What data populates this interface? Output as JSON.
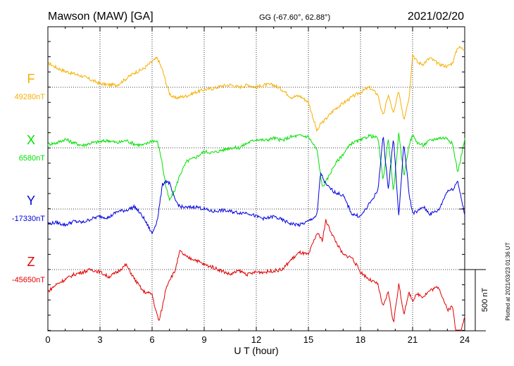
{
  "header": {
    "station": "Mawson (MAW)  [GA]",
    "coords": "GG (-67.60°,  62.88°)",
    "date": "2021/02/20"
  },
  "footer_note": "Plotted at 2021/03/23 01:36 UT",
  "chart_data": {
    "type": "line",
    "xlabel": "U T (hour)",
    "xlim": [
      0,
      24
    ],
    "xticks": [
      0,
      3,
      6,
      9,
      12,
      15,
      18,
      21,
      24
    ],
    "scale_bar": {
      "label": "500 nT",
      "nT": 500
    },
    "grid": true,
    "series": [
      {
        "name": "F",
        "baseline_label": "49280nT",
        "baseline": 49280,
        "color": "#f5b000",
        "t": [
          0,
          0.5,
          1,
          1.5,
          2,
          2.5,
          3,
          3.5,
          4,
          4.5,
          5,
          5.5,
          6,
          6.3,
          6.6,
          6.8,
          7,
          7.3,
          7.6,
          8,
          8.5,
          9,
          9.5,
          10,
          10.5,
          11,
          11.5,
          12,
          12.5,
          13,
          13.5,
          14,
          14.5,
          15,
          15.5,
          15.7,
          16,
          16.5,
          17,
          17.5,
          18,
          18.5,
          19,
          19.3,
          19.6,
          19.9,
          20.2,
          20.5,
          20.8,
          21,
          21.3,
          21.6,
          22,
          22.5,
          23,
          23.3,
          23.6,
          24
        ],
        "v": [
          200,
          160,
          130,
          110,
          90,
          60,
          30,
          20,
          20,
          70,
          120,
          150,
          210,
          240,
          140,
          40,
          -50,
          -90,
          -80,
          -70,
          -40,
          -20,
          -10,
          10,
          20,
          0,
          20,
          0,
          20,
          20,
          -20,
          -80,
          -70,
          -120,
          -360,
          -300,
          -260,
          -180,
          -130,
          -80,
          -40,
          0,
          -60,
          -240,
          -60,
          -220,
          -30,
          -260,
          -80,
          270,
          200,
          190,
          240,
          190,
          170,
          200,
          330,
          310
        ]
      },
      {
        "name": "X",
        "baseline_label": "6580nT",
        "baseline": 6580,
        "color": "#00e000",
        "t": [
          0,
          0.5,
          1,
          1.5,
          2,
          2.5,
          3,
          3.5,
          4,
          4.5,
          5,
          5.5,
          6,
          6.3,
          6.5,
          6.8,
          7,
          7.3,
          7.6,
          8,
          8.5,
          9,
          9.5,
          10,
          10.5,
          11,
          11.5,
          12,
          12.5,
          13,
          13.5,
          14,
          14.5,
          15,
          15.5,
          15.8,
          16,
          16.5,
          17,
          17.5,
          18,
          18.5,
          19,
          19.3,
          19.6,
          19.9,
          20.2,
          20.5,
          20.8,
          21,
          21.3,
          21.6,
          22,
          22.5,
          23,
          23.3,
          23.6,
          24
        ],
        "v": [
          30,
          40,
          70,
          40,
          20,
          40,
          50,
          60,
          40,
          60,
          30,
          20,
          60,
          50,
          -60,
          -320,
          -430,
          -350,
          -220,
          -110,
          -80,
          -30,
          -40,
          -20,
          0,
          0,
          40,
          70,
          60,
          80,
          60,
          90,
          100,
          90,
          -20,
          -320,
          -280,
          -140,
          -50,
          40,
          60,
          100,
          80,
          -270,
          80,
          -360,
          110,
          -230,
          30,
          100,
          40,
          20,
          60,
          80,
          80,
          30,
          -200,
          70
        ]
      },
      {
        "name": "Y",
        "baseline_label": "-17330nT",
        "baseline": -17330,
        "color": "#0000e0",
        "t": [
          0,
          0.5,
          1,
          1.5,
          2,
          2.5,
          3,
          3.5,
          4,
          4.5,
          5,
          5.5,
          6,
          6.3,
          6.6,
          6.8,
          7,
          7.3,
          7.6,
          8,
          8.5,
          9,
          9.5,
          10,
          10.5,
          11,
          11.5,
          12,
          12.5,
          13,
          13.5,
          14,
          14.5,
          15,
          15.5,
          15.7,
          16,
          16.5,
          17,
          17.5,
          18,
          18.5,
          19,
          19.3,
          19.6,
          19.9,
          20.2,
          20.5,
          20.8,
          21,
          21.3,
          21.6,
          22,
          22.5,
          23,
          23.3,
          23.6,
          24
        ],
        "v": [
          -120,
          -110,
          -130,
          -100,
          -110,
          -80,
          -60,
          -70,
          -20,
          -10,
          20,
          -70,
          -200,
          -90,
          200,
          230,
          210,
          80,
          20,
          10,
          20,
          0,
          -20,
          -10,
          -20,
          -30,
          -30,
          -60,
          -80,
          -60,
          -90,
          -120,
          -130,
          -100,
          -50,
          300,
          200,
          140,
          110,
          -40,
          -60,
          40,
          150,
          600,
          160,
          590,
          -60,
          540,
          120,
          -30,
          -20,
          20,
          -40,
          -10,
          150,
          160,
          230,
          -50
        ]
      },
      {
        "name": "Z",
        "baseline_label": "-45650nT",
        "baseline": -45650,
        "color": "#e00000",
        "t": [
          0,
          0.5,
          1,
          1.5,
          2,
          2.5,
          3,
          3.5,
          4,
          4.5,
          5,
          5.5,
          6,
          6.2,
          6.4,
          6.6,
          6.8,
          7,
          7.3,
          7.6,
          8,
          8.5,
          9,
          9.5,
          10,
          10.5,
          11,
          11.5,
          12,
          12.5,
          13,
          13.5,
          14,
          14.5,
          15,
          15.5,
          15.8,
          16,
          16.5,
          17,
          17.5,
          18,
          18.5,
          19,
          19.3,
          19.6,
          19.9,
          20.2,
          20.5,
          20.8,
          21,
          21.3,
          21.6,
          22,
          22.5,
          23,
          23.3,
          23.6,
          24
        ],
        "v": [
          -180,
          -120,
          -80,
          -40,
          -20,
          0,
          -20,
          -60,
          -20,
          40,
          -80,
          -180,
          -200,
          -330,
          -420,
          -300,
          -150,
          -80,
          -20,
          150,
          100,
          80,
          40,
          20,
          -10,
          -40,
          -10,
          -40,
          -20,
          -20,
          -10,
          0,
          80,
          140,
          120,
          300,
          240,
          400,
          250,
          120,
          100,
          -20,
          -80,
          -120,
          -310,
          -180,
          -440,
          -120,
          -360,
          -190,
          -250,
          -200,
          -220,
          -170,
          -140,
          -330,
          -300,
          -620,
          -380
        ]
      }
    ]
  }
}
